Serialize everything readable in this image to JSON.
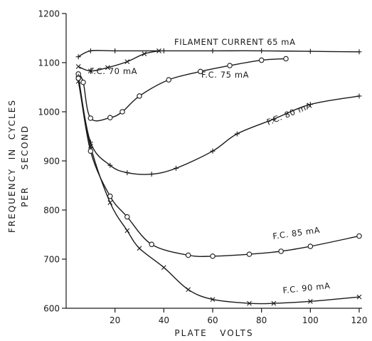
{
  "chart_data": {
    "type": "line",
    "title": "",
    "xlabel": "PLATE   VOLTS",
    "ylabel_line1": "FREQUENCY  IN  CYCLES",
    "ylabel_line2": "PER    SECOND",
    "xlim": [
      0,
      120
    ],
    "ylim": [
      600,
      1200
    ],
    "xticks": [
      20,
      40,
      60,
      80,
      100,
      120
    ],
    "yticks": [
      600,
      700,
      800,
      900,
      1000,
      1100,
      1200
    ],
    "grid": false,
    "series": [
      {
        "name": "FILAMENT   CURRENT  65 mA",
        "marker": "plus",
        "points": [
          [
            5,
            1112
          ],
          [
            10,
            1124
          ],
          [
            20,
            1124
          ],
          [
            40,
            1124
          ],
          [
            60,
            1124
          ],
          [
            80,
            1124
          ],
          [
            100,
            1123
          ],
          [
            120,
            1122
          ]
        ]
      },
      {
        "name": "F.C.  70 mA",
        "marker": "x",
        "points": [
          [
            5,
            1092
          ],
          [
            10,
            1083
          ],
          [
            17,
            1090
          ],
          [
            25,
            1102
          ],
          [
            32,
            1118
          ],
          [
            38,
            1124
          ]
        ]
      },
      {
        "name": "F.C.  75 mA",
        "marker": "circle",
        "points": [
          [
            5,
            1077
          ],
          [
            7,
            1060
          ],
          [
            10,
            987
          ],
          [
            18,
            988
          ],
          [
            23,
            1000
          ],
          [
            30,
            1032
          ],
          [
            42,
            1065
          ],
          [
            55,
            1082
          ],
          [
            67,
            1094
          ],
          [
            80,
            1105
          ],
          [
            90,
            1108
          ]
        ]
      },
      {
        "name": "F.C.  80 mA",
        "marker": "plus",
        "points": [
          [
            5,
            1072
          ],
          [
            10,
            938
          ],
          [
            18,
            891
          ],
          [
            25,
            876
          ],
          [
            35,
            873
          ],
          [
            45,
            885
          ],
          [
            60,
            920
          ],
          [
            70,
            955
          ],
          [
            85,
            985
          ],
          [
            100,
            1015
          ],
          [
            120,
            1032
          ]
        ]
      },
      {
        "name": "F.C.  85 mA",
        "marker": "circle",
        "points": [
          [
            5,
            1068
          ],
          [
            10,
            920
          ],
          [
            18,
            828
          ],
          [
            25,
            786
          ],
          [
            35,
            730
          ],
          [
            50,
            708
          ],
          [
            60,
            706
          ],
          [
            75,
            710
          ],
          [
            88,
            716
          ],
          [
            100,
            726
          ],
          [
            120,
            747
          ]
        ]
      },
      {
        "name": "F.C.  90 mA",
        "marker": "x",
        "points": [
          [
            5,
            1062
          ],
          [
            10,
            930
          ],
          [
            18,
            815
          ],
          [
            25,
            758
          ],
          [
            30,
            722
          ],
          [
            40,
            683
          ],
          [
            50,
            638
          ],
          [
            60,
            618
          ],
          [
            75,
            610
          ],
          [
            85,
            610
          ],
          [
            100,
            614
          ],
          [
            120,
            623
          ]
        ]
      }
    ]
  }
}
